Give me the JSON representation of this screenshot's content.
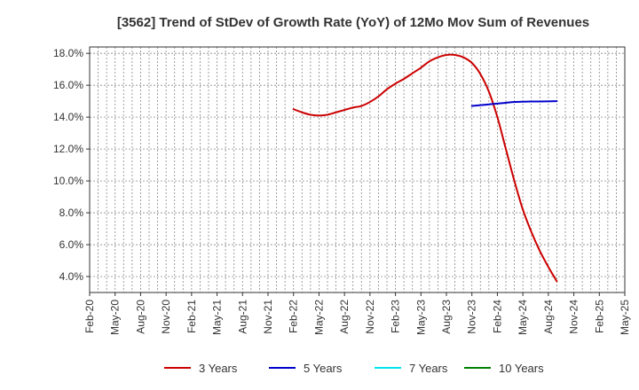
{
  "chart_data": {
    "type": "line",
    "title": "[3562]  Trend of StDev of Growth Rate (YoY) of 12Mo Mov Sum of Revenues",
    "xlabel": "",
    "ylabel": "",
    "x_ticks": [
      "Feb-20",
      "May-20",
      "Aug-20",
      "Nov-20",
      "Feb-21",
      "May-21",
      "Aug-21",
      "Nov-21",
      "Feb-22",
      "May-22",
      "Aug-22",
      "Nov-22",
      "Feb-23",
      "May-23",
      "Aug-23",
      "Nov-23",
      "Feb-24",
      "May-24",
      "Aug-24",
      "Nov-24",
      "Feb-25",
      "May-25"
    ],
    "y_ticks": [
      "4.0%",
      "6.0%",
      "8.0%",
      "10.0%",
      "12.0%",
      "14.0%",
      "16.0%",
      "18.0%"
    ],
    "y_tick_values": [
      4,
      6,
      8,
      10,
      12,
      14,
      16,
      18
    ],
    "ylim": [
      3.0,
      18.4
    ],
    "xlim": [
      0,
      63
    ],
    "grid": true,
    "legend_position": "bottom",
    "series": [
      {
        "name": "3 Years",
        "color": "#cc0000",
        "points": [
          [
            24,
            14.5
          ],
          [
            25,
            14.3
          ],
          [
            26,
            14.15
          ],
          [
            27,
            14.1
          ],
          [
            28,
            14.15
          ],
          [
            29,
            14.3
          ],
          [
            30,
            14.45
          ],
          [
            31,
            14.6
          ],
          [
            32,
            14.7
          ],
          [
            33,
            14.95
          ],
          [
            34,
            15.3
          ],
          [
            35,
            15.75
          ],
          [
            36,
            16.1
          ],
          [
            37,
            16.4
          ],
          [
            38,
            16.75
          ],
          [
            39,
            17.1
          ],
          [
            40,
            17.5
          ],
          [
            41,
            17.75
          ],
          [
            42,
            17.9
          ],
          [
            43,
            17.9
          ],
          [
            44,
            17.75
          ],
          [
            45,
            17.4
          ],
          [
            46,
            16.7
          ],
          [
            47,
            15.6
          ],
          [
            48,
            14.0
          ],
          [
            49,
            12.0
          ],
          [
            50,
            10.0
          ],
          [
            51,
            8.2
          ],
          [
            52,
            6.8
          ],
          [
            53,
            5.6
          ],
          [
            54,
            4.6
          ],
          [
            55,
            3.7
          ]
        ]
      },
      {
        "name": "5 Years",
        "color": "#0000cc",
        "points": [
          [
            45,
            14.7
          ],
          [
            46,
            14.75
          ],
          [
            47,
            14.8
          ],
          [
            48,
            14.85
          ],
          [
            49,
            14.9
          ],
          [
            50,
            14.95
          ],
          [
            51,
            14.97
          ],
          [
            52,
            14.98
          ],
          [
            53,
            14.98
          ],
          [
            54,
            14.99
          ],
          [
            55,
            15.0
          ]
        ]
      },
      {
        "name": "7 Years",
        "color": "#00e5ee",
        "points": []
      },
      {
        "name": "10 Years",
        "color": "#008000",
        "points": []
      }
    ]
  }
}
